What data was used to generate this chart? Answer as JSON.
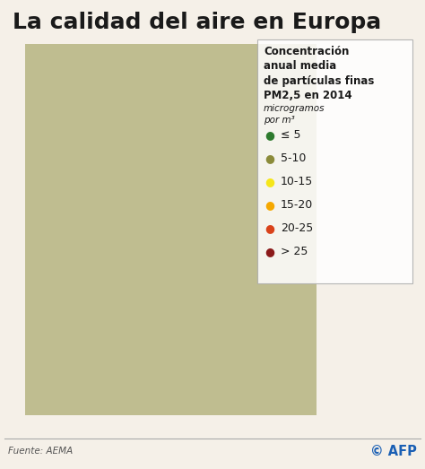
{
  "title": "La calidad del aire en Europa",
  "legend_title_lines": [
    "Concentración",
    "anual media",
    "de partículas finas",
    "PM2,5 en 2014"
  ],
  "legend_subtitle": "microgramos\npor m³",
  "legend_items": [
    {
      "label": "≤ 5",
      "color": "#2d7a2d"
    },
    {
      "label": "5-10",
      "color": "#8b8b3a"
    },
    {
      "label": "10-15",
      "color": "#f5e619"
    },
    {
      "label": "15-20",
      "color": "#f5a800"
    },
    {
      "label": "20-25",
      "color": "#d9421a"
    },
    {
      "label": "> 25",
      "color": "#8b1a1a"
    }
  ],
  "source_text": "Fuente: AEMA",
  "afp_text": "© AFP",
  "bg_color": "#f5f0e8",
  "map_bg": "#ccd9e3",
  "border_color": "#ffffff",
  "title_fontsize": 18,
  "legend_title_fontsize": 8.5,
  "legend_item_fontsize": 9,
  "source_fontsize": 7.5,
  "figsize": [
    4.74,
    5.23
  ],
  "dpi": 100,
  "country_colors": {
    "Norway": "#2d7a2d",
    "Sweden": "#2d7a2d",
    "Finland": "#2d7a2d",
    "Iceland": "#2d7a2d",
    "Ireland": "#8b8b3a",
    "United Kingdom": "#8b8b3a",
    "Portugal": "#8b8b3a",
    "Spain": "#8b8b3a",
    "France": "#8b8b3a",
    "Germany": "#f5e619",
    "Netherlands": "#f5e619",
    "Belgium": "#f5e619",
    "Luxembourg": "#f5e619",
    "Switzerland": "#f5e619",
    "Austria": "#f5a800",
    "Italy": "#f5a800",
    "Czech Rep.": "#f5a800",
    "Czechia": "#f5a800",
    "Czech Republic": "#f5a800",
    "Slovakia": "#f5a800",
    "Hungary": "#f5a800",
    "Poland": "#f5a800",
    "Romania": "#f5a800",
    "Bulgaria": "#f5a800",
    "Serbia": "#f5a800",
    "Croatia": "#f5a800",
    "Bosnia and Herz.": "#f5a800",
    "Bosnia and Herzegovina": "#f5a800",
    "Slovenia": "#f5a800",
    "Macedonia": "#f5a800",
    "North Macedonia": "#f5a800",
    "Albania": "#f5a800",
    "Greece": "#f5a800",
    "Turkey": "#f5e619",
    "Ukraine": "#f5e619",
    "Belarus": "#f5e619",
    "Moldova": "#f5e619",
    "Lithuania": "#f5e619",
    "Latvia": "#f5e619",
    "Estonia": "#8b8b3a",
    "Denmark": "#f5e619",
    "Montenegro": "#f5a800",
    "Kosovo": "#f5a800",
    "Russia": "#2d7a2d",
    "Malta": "#f5a800",
    "Cyprus": "#f5e619"
  },
  "europe_bounds": [
    -25,
    34,
    45,
    72
  ]
}
